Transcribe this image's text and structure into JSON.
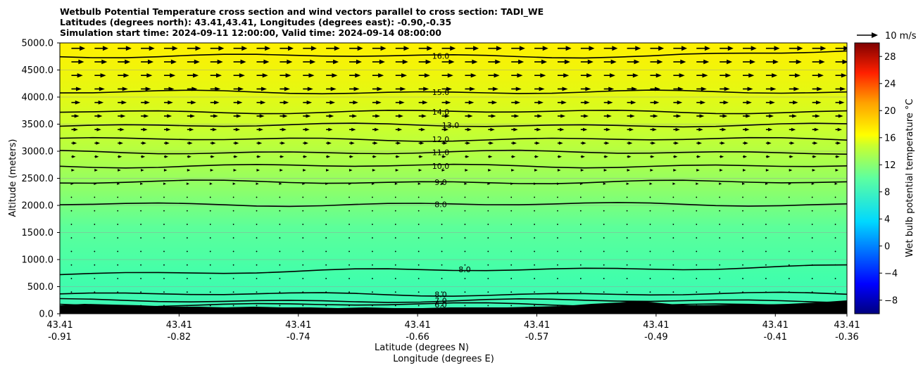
{
  "chart_data": {
    "type": "heatmap",
    "title": [
      "Wetbulb Potential Temperature cross section and wind vectors parallel to cross section: TADI_WE",
      "Latitudes (degrees north): 43.41,43.41, Longitudes (degrees east): -0.90,-0.35",
      "Simulation start time: 2024-09-11 12:00:00, Valid time: 2024-09-14 08:00:00"
    ],
    "ylabel": "Altitude (meters)",
    "xlabel": "Latitude (degrees N)",
    "xlabel2": "Longitude (degrees E)",
    "ylim": [
      0,
      5000
    ],
    "yticks": [
      "0.0",
      "500.0",
      "1000.0",
      "1500.0",
      "2000.0",
      "2500.0",
      "3000.0",
      "3500.0",
      "4000.0",
      "4500.0",
      "5000.0"
    ],
    "ytick_values": [
      0,
      500,
      1000,
      1500,
      2000,
      2500,
      3000,
      3500,
      4000,
      4500,
      5000
    ],
    "xticks": [
      {
        "lat": "43.41",
        "lon": "-0.91",
        "pos": 0.0
      },
      {
        "lat": "43.41",
        "lon": "-0.82",
        "pos": 0.1515
      },
      {
        "lat": "43.41",
        "lon": "-0.74",
        "pos": 0.303
      },
      {
        "lat": "43.41",
        "lon": "-0.66",
        "pos": 0.4545
      },
      {
        "lat": "43.41",
        "lon": "-0.57",
        "pos": 0.606
      },
      {
        "lat": "43.41",
        "lon": "-0.49",
        "pos": 0.7575
      },
      {
        "lat": "43.41",
        "lon": "-0.41",
        "pos": 0.909
      },
      {
        "lat": "43.41",
        "lon": "-0.36",
        "pos": 1.0
      }
    ],
    "contours": [
      {
        "label": "16.0",
        "alt": 4760
      },
      {
        "label": "15.0",
        "alt": 4090
      },
      {
        "label": "14.0",
        "alt": 3730
      },
      {
        "label": "13.0",
        "alt": 3480
      },
      {
        "label": "12.0",
        "alt": 3220
      },
      {
        "label": "11.0",
        "alt": 2980
      },
      {
        "label": "10.0",
        "alt": 2730
      },
      {
        "label": "9.0",
        "alt": 2430
      },
      {
        "label": "8.0",
        "alt": 2020
      },
      {
        "label": "8.0",
        "alt": 820
      },
      {
        "label": "8.0",
        "alt": 360
      },
      {
        "label": "7.0",
        "alt": 240
      },
      {
        "label": "6.0",
        "alt": 170
      }
    ],
    "wind_reference": "10 m/s",
    "colorbar": {
      "label": "Wet bulb potential temperature °C",
      "range": [
        -10,
        30
      ],
      "ticks": [
        "−8",
        "−4",
        "0",
        "4",
        "8",
        "12",
        "16",
        "20",
        "24",
        "28"
      ],
      "tick_values": [
        -8,
        -4,
        0,
        4,
        8,
        12,
        16,
        20,
        24,
        28
      ]
    }
  }
}
